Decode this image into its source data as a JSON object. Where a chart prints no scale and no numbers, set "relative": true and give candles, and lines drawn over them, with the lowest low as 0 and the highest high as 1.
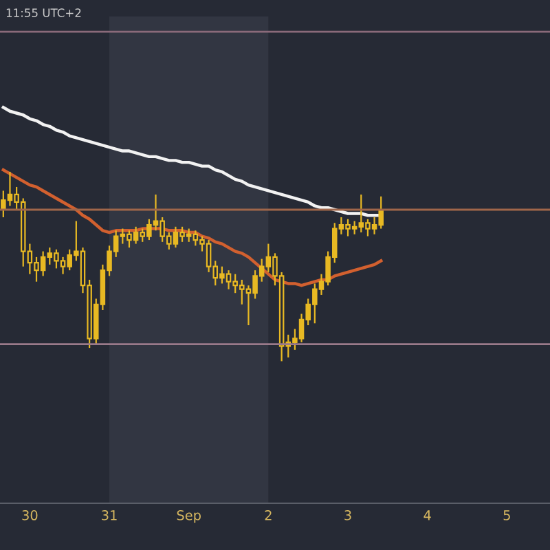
{
  "chart_data": {
    "type": "candlestick",
    "relative": true,
    "color": "#e8b923",
    "annotations": [
      "11:55 UTC+2"
    ],
    "categories": [
      null,
      null,
      null,
      null,
      "30",
      null,
      null,
      null,
      null,
      null,
      null,
      null,
      null,
      null,
      null,
      null,
      "31",
      null,
      null,
      null,
      null,
      null,
      null,
      null,
      null,
      null,
      null,
      null,
      "Sep",
      null,
      null,
      null,
      null,
      null,
      null,
      null,
      null,
      null,
      null,
      null,
      "2",
      null,
      null,
      null,
      null,
      null,
      null,
      null,
      null,
      null,
      null,
      null,
      "3",
      null,
      null,
      null,
      null,
      null,
      null,
      null,
      null,
      null,
      null,
      null,
      "4",
      null,
      null,
      null,
      null,
      null,
      null,
      null,
      null,
      null,
      null,
      null,
      "5",
      null,
      null,
      null,
      null,
      null,
      null
    ],
    "ohlc": [
      [
        0.8,
        0.9,
        0.76,
        0.85
      ],
      [
        0.85,
        1.0,
        0.82,
        0.88
      ],
      [
        0.88,
        0.92,
        0.8,
        0.84
      ],
      [
        0.84,
        0.86,
        0.5,
        0.58
      ],
      [
        0.58,
        0.62,
        0.46,
        0.52
      ],
      [
        0.52,
        0.55,
        0.42,
        0.48
      ],
      [
        0.48,
        0.58,
        0.45,
        0.55
      ],
      [
        0.55,
        0.6,
        0.51,
        0.57
      ],
      [
        0.57,
        0.59,
        0.49,
        0.53
      ],
      [
        0.53,
        0.55,
        0.46,
        0.5
      ],
      [
        0.5,
        0.59,
        0.48,
        0.56
      ],
      [
        0.56,
        0.74,
        0.53,
        0.58
      ],
      [
        0.58,
        0.6,
        0.36,
        0.4
      ],
      [
        0.4,
        0.43,
        0.07,
        0.12
      ],
      [
        0.12,
        0.33,
        0.09,
        0.3
      ],
      [
        0.3,
        0.51,
        0.27,
        0.48
      ],
      [
        0.48,
        0.61,
        0.45,
        0.58
      ],
      [
        0.58,
        0.69,
        0.55,
        0.66
      ],
      [
        0.66,
        0.7,
        0.62,
        0.67
      ],
      [
        0.67,
        0.69,
        0.6,
        0.64
      ],
      [
        0.64,
        0.71,
        0.62,
        0.68
      ],
      [
        0.68,
        0.7,
        0.63,
        0.66
      ],
      [
        0.66,
        0.75,
        0.64,
        0.72
      ],
      [
        0.72,
        0.88,
        0.69,
        0.74
      ],
      [
        0.74,
        0.76,
        0.63,
        0.66
      ],
      [
        0.66,
        0.68,
        0.59,
        0.62
      ],
      [
        0.62,
        0.71,
        0.6,
        0.68
      ],
      [
        0.68,
        0.71,
        0.63,
        0.66
      ],
      [
        0.66,
        0.7,
        0.63,
        0.67
      ],
      [
        0.67,
        0.69,
        0.61,
        0.64
      ],
      [
        0.64,
        0.66,
        0.58,
        0.62
      ],
      [
        0.62,
        0.64,
        0.47,
        0.5
      ],
      [
        0.5,
        0.53,
        0.4,
        0.44
      ],
      [
        0.44,
        0.5,
        0.41,
        0.46
      ],
      [
        0.46,
        0.48,
        0.38,
        0.42
      ],
      [
        0.42,
        0.46,
        0.36,
        0.4
      ],
      [
        0.4,
        0.43,
        0.3,
        0.38
      ],
      [
        0.38,
        0.4,
        0.19,
        0.36
      ],
      [
        0.36,
        0.48,
        0.33,
        0.45
      ],
      [
        0.45,
        0.54,
        0.42,
        0.5
      ],
      [
        0.5,
        0.62,
        0.47,
        0.55
      ],
      [
        0.55,
        0.57,
        0.4,
        0.45
      ],
      [
        0.45,
        0.47,
        0.0,
        0.08
      ],
      [
        0.08,
        0.14,
        0.02,
        0.1
      ],
      [
        0.1,
        0.17,
        0.06,
        0.12
      ],
      [
        0.12,
        0.25,
        0.1,
        0.22
      ],
      [
        0.22,
        0.33,
        0.19,
        0.3
      ],
      [
        0.3,
        0.41,
        0.2,
        0.38
      ],
      [
        0.38,
        0.46,
        0.35,
        0.42
      ],
      [
        0.42,
        0.58,
        0.4,
        0.55
      ],
      [
        0.55,
        0.73,
        0.52,
        0.7
      ],
      [
        0.7,
        0.76,
        0.67,
        0.72
      ],
      [
        0.72,
        0.75,
        0.66,
        0.7
      ],
      [
        0.7,
        0.74,
        0.67,
        0.71
      ],
      [
        0.71,
        0.88,
        0.68,
        0.73
      ],
      [
        0.73,
        0.75,
        0.66,
        0.7
      ],
      [
        0.7,
        0.76,
        0.67,
        0.72
      ],
      [
        0.72,
        0.87,
        0.7,
        0.8
      ],
      null,
      null,
      null,
      null,
      null,
      null,
      null,
      null,
      null,
      null,
      null,
      null,
      null,
      null,
      null,
      null,
      null,
      null,
      null,
      null,
      null,
      null,
      null,
      null,
      null
    ],
    "series": [
      {
        "type": "line",
        "color": "#f2f2f2",
        "values": [
          1.34,
          1.32,
          1.31,
          1.3,
          1.28,
          1.27,
          1.25,
          1.24,
          1.22,
          1.21,
          1.19,
          1.18,
          1.17,
          1.16,
          1.15,
          1.14,
          1.13,
          1.12,
          1.11,
          1.11,
          1.1,
          1.09,
          1.08,
          1.08,
          1.07,
          1.06,
          1.06,
          1.05,
          1.05,
          1.04,
          1.03,
          1.03,
          1.01,
          1.0,
          0.98,
          0.96,
          0.95,
          0.93,
          0.92,
          0.91,
          0.9,
          0.89,
          0.88,
          0.87,
          0.86,
          0.85,
          0.84,
          0.82,
          0.81,
          0.81,
          0.8,
          0.79,
          0.78,
          0.78,
          0.78,
          0.77,
          0.77,
          0.77,
          null,
          null,
          null,
          null,
          null,
          null,
          null,
          null,
          null,
          null,
          null,
          null,
          null,
          null,
          null,
          null,
          null,
          null,
          null,
          null,
          null,
          null,
          null,
          null,
          null
        ]
      },
      {
        "type": "line",
        "color": "#d2602f",
        "values": [
          1.01,
          0.99,
          0.97,
          0.95,
          0.93,
          0.92,
          0.9,
          0.88,
          0.86,
          0.84,
          0.82,
          0.8,
          0.77,
          0.75,
          0.72,
          0.69,
          0.68,
          0.69,
          0.69,
          0.69,
          0.69,
          0.7,
          0.7,
          0.7,
          0.7,
          0.69,
          0.69,
          0.69,
          0.68,
          0.68,
          0.66,
          0.65,
          0.63,
          0.62,
          0.6,
          0.58,
          0.57,
          0.55,
          0.52,
          0.49,
          0.46,
          0.43,
          0.42,
          0.41,
          0.41,
          0.4,
          0.41,
          0.42,
          0.43,
          0.43,
          0.45,
          0.46,
          0.47,
          0.48,
          0.49,
          0.5,
          0.51,
          0.53,
          null,
          null,
          null,
          null,
          null,
          null,
          null,
          null,
          null,
          null,
          null,
          null,
          null,
          null,
          null,
          null,
          null,
          null,
          null,
          null,
          null,
          null,
          null,
          null,
          null
        ]
      }
    ],
    "ref_lines": [
      {
        "axis": "y",
        "value": 0.8,
        "color": "#a0664a"
      },
      {
        "axis": "y",
        "value": 1.74,
        "color": "#8a6a7a"
      },
      {
        "axis": "y",
        "value": 0.09,
        "color": "#9a7a8a"
      }
    ],
    "bands": [
      {
        "axis": "x",
        "from": "31",
        "to": "2",
        "color": "#323642"
      }
    ],
    "tick_labels": "x",
    "grid": false
  }
}
